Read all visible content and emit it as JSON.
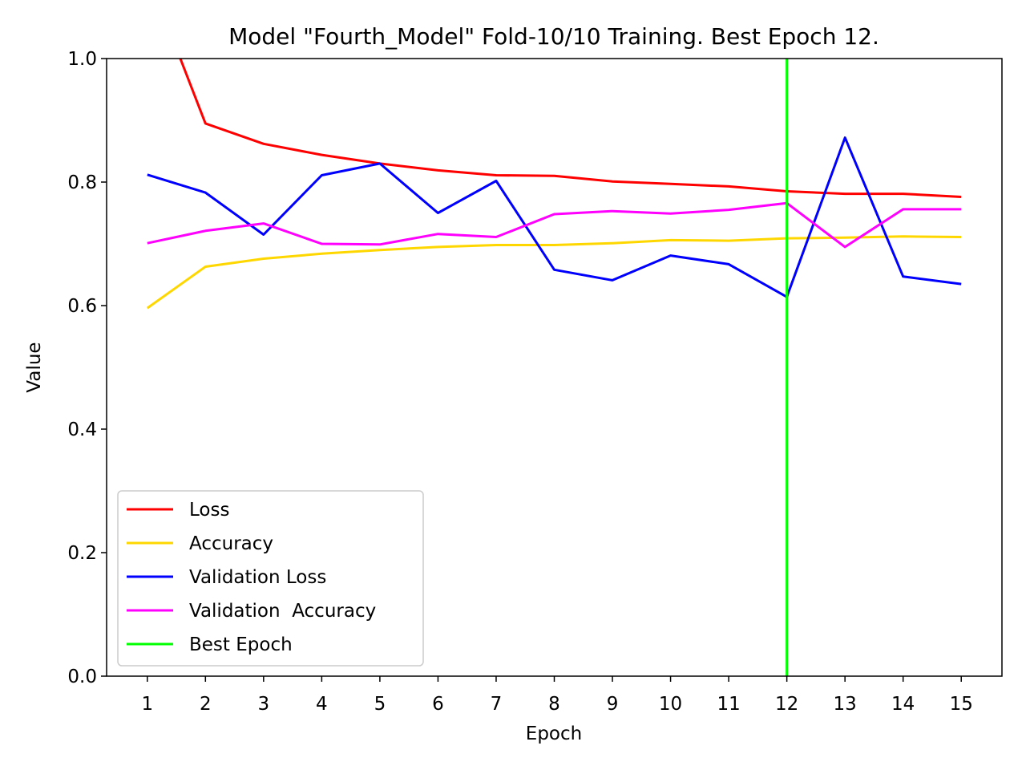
{
  "chart_data": {
    "type": "line",
    "title": "Model \"Fourth_Model\" Fold-10/10 Training. Best Epoch 12.",
    "xlabel": "Epoch",
    "ylabel": "Value",
    "ylim": [
      0,
      1.0
    ],
    "xlim": [
      0.3,
      15.7
    ],
    "x": [
      1,
      2,
      3,
      4,
      5,
      6,
      7,
      8,
      9,
      10,
      11,
      12,
      13,
      14,
      15
    ],
    "x_tick_labels": [
      "1",
      "2",
      "3",
      "4",
      "5",
      "6",
      "7",
      "8",
      "9",
      "10",
      "11",
      "12",
      "13",
      "14",
      "15"
    ],
    "y_ticks": [
      0.0,
      0.2,
      0.4,
      0.6,
      0.8,
      1.0
    ],
    "y_tick_labels": [
      "0.0",
      "0.2",
      "0.4",
      "0.6",
      "0.8",
      "1.0"
    ],
    "grid": false,
    "legend_placement": "lower-left",
    "series": [
      {
        "name": "Loss",
        "color": "#ff0000",
        "values": [
          1.138,
          0.895,
          0.862,
          0.844,
          0.83,
          0.819,
          0.811,
          0.81,
          0.801,
          0.797,
          0.793,
          0.785,
          0.781,
          0.781,
          0.776
        ]
      },
      {
        "name": "Accuracy",
        "color": "#ffd700",
        "values": [
          0.596,
          0.663,
          0.676,
          0.684,
          0.69,
          0.695,
          0.698,
          0.698,
          0.701,
          0.706,
          0.705,
          0.709,
          0.71,
          0.712,
          0.711
        ]
      },
      {
        "name": "Validation Loss",
        "color": "#0000ff",
        "values": [
          0.812,
          0.783,
          0.715,
          0.811,
          0.83,
          0.75,
          0.802,
          0.658,
          0.641,
          0.681,
          0.667,
          0.614,
          0.872,
          0.647,
          0.635
        ]
      },
      {
        "name": "Validation  Accuracy",
        "color": "#ff00ff",
        "values": [
          0.701,
          0.721,
          0.733,
          0.7,
          0.699,
          0.716,
          0.711,
          0.748,
          0.753,
          0.749,
          0.755,
          0.766,
          0.695,
          0.756,
          0.756
        ]
      }
    ],
    "best_epoch": {
      "name": "Best Epoch",
      "color": "#00ff00",
      "x": 12
    }
  }
}
